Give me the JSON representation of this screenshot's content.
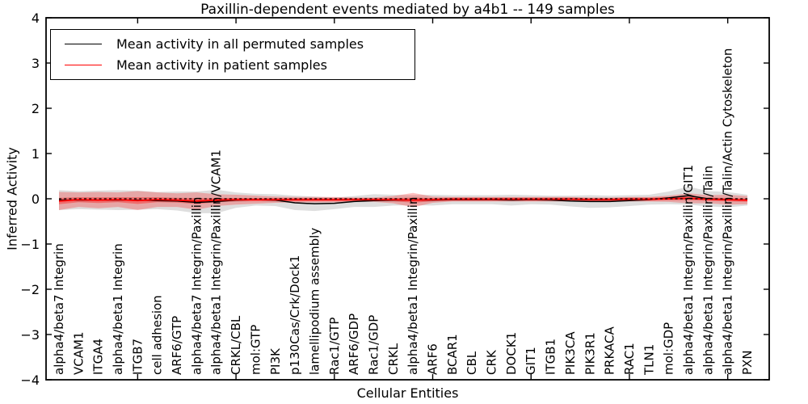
{
  "figure": {
    "title": "Paxillin-dependent events mediated by a4b1 -- 149 samples"
  },
  "chart_data": {
    "type": "line",
    "title": "Paxillin-dependent events mediated by a4b1 -- 149 samples",
    "xlabel": "Cellular Entities",
    "ylabel": "Inferred Activity",
    "ylim": [
      -4,
      4
    ],
    "yticks": [
      4,
      3,
      2,
      1,
      0,
      -1,
      -2,
      -3,
      -4
    ],
    "xtick_category_indices": [
      5,
      10,
      15,
      20,
      25,
      30,
      35
    ],
    "grid": false,
    "legend_position": "upper left",
    "zero_line_style": "dashed",
    "categories": [
      "alpha4/beta7 Integrin",
      "VCAM1",
      "ITGA4",
      "alpha4/beta1 Integrin",
      "ITGB7",
      "cell adhesion",
      "ARF6/GTP",
      "alpha4/beta7 Integrin/Paxillin",
      "alpha4/beta1 Integrin/Paxillin/VCAM1",
      "CRKL/CBL",
      "mol:GTP",
      "PI3K",
      "p130Cas/Crk/Dock1",
      "lamellipodium assembly",
      "Rac1/GTP",
      "ARF6/GDP",
      "Rac1/GDP",
      "CRKL",
      "alpha4/beta1 Integrin/Paxillin",
      "ARF6",
      "BCAR1",
      "CBL",
      "CRK",
      "DOCK1",
      "GIT1",
      "ITGB1",
      "PIK3CA",
      "PIK3R1",
      "PRKACA",
      "RAC1",
      "TLN1",
      "mol:GDP",
      "alpha4/beta1 Integrin/Paxillin/GIT1",
      "alpha4/beta1 Integrin/Paxillin/Talin",
      "alpha4/beta1 Integrin/Paxillin/Talin/Actin Cytoskeleton",
      "PXN"
    ],
    "series": [
      {
        "name": "Mean activity in all permuted samples",
        "color": "#000000",
        "band_opacity": 0.13,
        "values": [
          -0.03,
          -0.03,
          -0.03,
          -0.03,
          -0.03,
          -0.04,
          -0.05,
          -0.08,
          -0.06,
          -0.03,
          -0.02,
          -0.03,
          -0.09,
          -0.11,
          -0.1,
          -0.06,
          -0.04,
          -0.03,
          -0.03,
          -0.03,
          -0.02,
          -0.02,
          -0.02,
          -0.03,
          -0.02,
          -0.03,
          -0.05,
          -0.06,
          -0.06,
          -0.04,
          -0.02,
          0.02,
          0.07,
          0.0,
          -0.02,
          -0.03
        ],
        "band_halfwidth": [
          0.22,
          0.2,
          0.21,
          0.22,
          0.21,
          0.19,
          0.21,
          0.24,
          0.26,
          0.17,
          0.13,
          0.13,
          0.16,
          0.16,
          0.13,
          0.12,
          0.14,
          0.12,
          0.11,
          0.12,
          0.1,
          0.1,
          0.1,
          0.12,
          0.1,
          0.1,
          0.12,
          0.14,
          0.13,
          0.12,
          0.11,
          0.14,
          0.2,
          0.17,
          0.17,
          0.12
        ]
      },
      {
        "name": "Mean activity in patient samples",
        "color": "#ff0000",
        "band_opacity": 0.25,
        "values": [
          -0.05,
          -0.02,
          -0.03,
          -0.02,
          -0.04,
          -0.02,
          -0.03,
          -0.05,
          -0.03,
          -0.02,
          -0.02,
          -0.02,
          -0.02,
          -0.02,
          -0.02,
          -0.02,
          -0.02,
          -0.02,
          -0.03,
          -0.02,
          -0.01,
          -0.01,
          -0.01,
          -0.01,
          -0.01,
          -0.01,
          -0.01,
          -0.02,
          -0.02,
          -0.01,
          -0.01,
          0.0,
          0.01,
          -0.01,
          -0.02,
          -0.03
        ],
        "band_halfwidth": [
          0.2,
          0.16,
          0.18,
          0.16,
          0.21,
          0.16,
          0.15,
          0.19,
          0.13,
          0.11,
          0.09,
          0.07,
          0.06,
          0.06,
          0.06,
          0.05,
          0.05,
          0.08,
          0.16,
          0.07,
          0.05,
          0.05,
          0.05,
          0.05,
          0.05,
          0.05,
          0.05,
          0.05,
          0.05,
          0.05,
          0.05,
          0.07,
          0.11,
          0.09,
          0.11,
          0.09
        ]
      }
    ]
  }
}
